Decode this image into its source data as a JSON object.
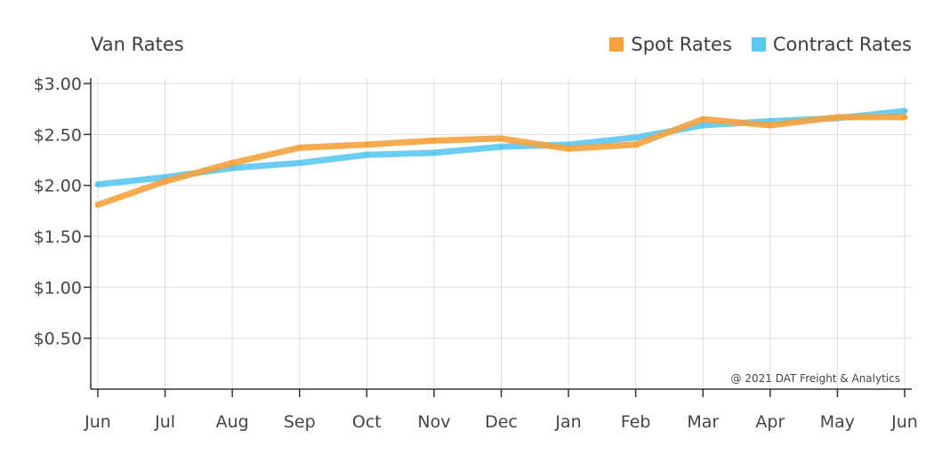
{
  "chart_data": {
    "type": "line",
    "title": "Van Rates",
    "categories": [
      "Jun",
      "Jul",
      "Aug",
      "Sep",
      "Oct",
      "Nov",
      "Dec",
      "Jan",
      "Feb",
      "Mar",
      "Apr",
      "May",
      "Jun"
    ],
    "series": [
      {
        "name": "Spot Rates",
        "color": "#f5a23d",
        "values": [
          1.81,
          2.04,
          2.22,
          2.37,
          2.4,
          2.44,
          2.46,
          2.36,
          2.4,
          2.65,
          2.59,
          2.67,
          2.67
        ]
      },
      {
        "name": "Contract Rates",
        "color": "#5bc8ef",
        "values": [
          2.01,
          2.08,
          2.17,
          2.22,
          2.3,
          2.32,
          2.38,
          2.4,
          2.47,
          2.59,
          2.63,
          2.66,
          2.73
        ]
      }
    ],
    "yticks": [
      "$3.00",
      "$2.50",
      "$2.00",
      "$1.50",
      "$1.00",
      "$0.50"
    ],
    "ytick_values": [
      3.0,
      2.5,
      2.0,
      1.5,
      1.0,
      0.5
    ],
    "ylim": [
      0,
      3.0
    ],
    "grid": true,
    "legend_position": "top-right",
    "annotation": "@ 2021 DAT Freight & Analytics"
  }
}
